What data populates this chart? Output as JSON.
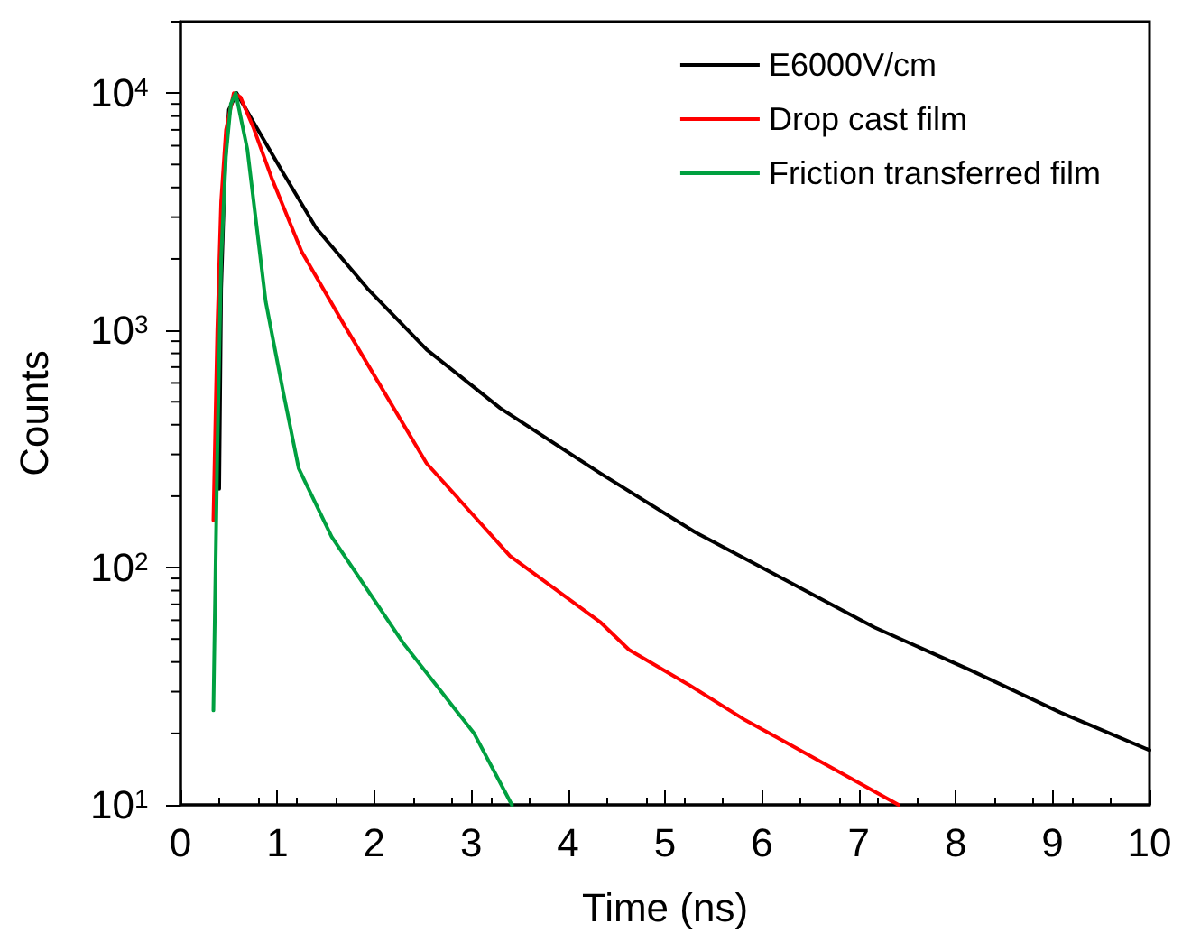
{
  "chart_data": {
    "type": "line",
    "xlabel": "Time (ns)",
    "ylabel": "Counts",
    "log": "y",
    "xlim": [
      0,
      10
    ],
    "xticks": [
      0,
      1,
      2,
      3,
      4,
      5,
      6,
      7,
      8,
      9,
      10
    ],
    "ylim": [
      10,
      20000
    ],
    "yticks": [
      {
        "value": 10,
        "label": "10$^{1}$"
      },
      {
        "value": 100,
        "label": "10$^{2}$"
      },
      {
        "value": 1000,
        "label": "10$^{3}$"
      },
      {
        "value": 10000,
        "label": "10$^{4}$"
      }
    ],
    "grid": false,
    "legend": "top right",
    "marker": "none",
    "line_style": "solid",
    "series": [
      {
        "name": "E6000V/cm",
        "color": "#000000",
        "x": [
          0.4,
          0.42,
          0.46,
          0.5,
          0.58,
          0.8,
          1.06,
          1.4,
          1.93,
          2.54,
          3.3,
          4.33,
          5.31,
          6.0,
          7.16,
          8.15,
          9.08,
          10
        ],
        "values": [
          215,
          1500,
          5000,
          8500,
          10000,
          7000,
          4600,
          2700,
          1500,
          830,
          470,
          250,
          141,
          100,
          56,
          37,
          24.5,
          17
        ]
      },
      {
        "name": "Drop cast film",
        "color": "#ff0000",
        "x": [
          0.34,
          0.38,
          0.42,
          0.47,
          0.55,
          0.62,
          0.75,
          0.94,
          1.25,
          1.68,
          2.54,
          3.4,
          4.33,
          4.63,
          5.25,
          5.81,
          6.18,
          7.41
        ],
        "values": [
          158,
          1000,
          3500,
          7000,
          10000,
          9600,
          7200,
          4400,
          2150,
          1070,
          275,
          112,
          59,
          45,
          32,
          23,
          19,
          10
        ]
      },
      {
        "name": "Friction transferred film",
        "color": "#00a040",
        "x": [
          0.34,
          0.38,
          0.42,
          0.47,
          0.52,
          0.57,
          0.69,
          0.88,
          1.06,
          1.22,
          1.56,
          2.3,
          3.03,
          3.42
        ],
        "values": [
          25,
          300,
          2000,
          5500,
          9000,
          10000,
          5800,
          1320,
          550,
          262,
          135,
          48,
          20,
          10
        ]
      }
    ]
  }
}
